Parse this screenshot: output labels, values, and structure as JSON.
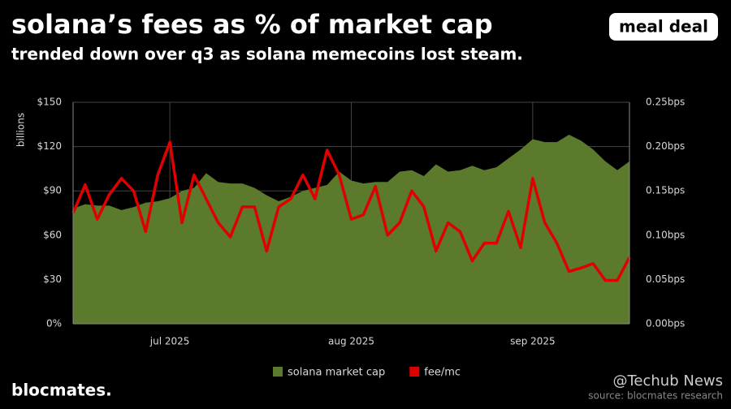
{
  "chart_data": {
    "type": "area-line",
    "title": "solana’s fees as % of market cap",
    "subtitle": "trended down over q3 as solana memecoins lost steam.",
    "brand": "meal deal",
    "footer": "blocmates.",
    "source": "source: blocmates research",
    "watermark": "@Techub News",
    "ylabel": "billions",
    "categories": [
      null,
      null,
      null,
      null,
      null,
      null,
      null,
      null,
      "jul 2025",
      null,
      null,
      null,
      null,
      null,
      null,
      null,
      null,
      null,
      null,
      null,
      null,
      null,
      null,
      "aug 2025",
      null,
      null,
      null,
      null,
      null,
      null,
      null,
      null,
      null,
      null,
      null,
      null,
      null,
      null,
      "sep 2025",
      null,
      null,
      null,
      null,
      null,
      null,
      null,
      null
    ],
    "ylim": [
      0,
      150
    ],
    "yticks": [
      {
        "value": 0,
        "label": "0%"
      },
      {
        "value": 30,
        "label": "$30"
      },
      {
        "value": 60,
        "label": "$60"
      },
      {
        "value": 90,
        "label": "$90"
      },
      {
        "value": 120,
        "label": "$120"
      },
      {
        "value": 150,
        "label": "$150"
      }
    ],
    "y2lim": [
      0,
      0.25
    ],
    "y2ticks": [
      {
        "value": 0,
        "label": "0.00bps"
      },
      {
        "value": 0.05,
        "label": "0.05bps"
      },
      {
        "value": 0.1,
        "label": "0.10bps"
      },
      {
        "value": 0.15,
        "label": "0.15bps"
      },
      {
        "value": 0.2,
        "label": "0.20bps"
      },
      {
        "value": 0.25,
        "label": "0.25bps"
      }
    ],
    "grid": true,
    "legend": "bottom",
    "series": [
      {
        "name": "solana market cap",
        "color": "#5b7a2c",
        "kind": "area",
        "values": [
          78,
          81,
          80,
          80,
          77,
          79,
          82,
          83,
          85,
          90,
          92,
          102,
          96,
          95,
          95,
          92,
          87,
          83,
          86,
          90,
          92,
          94,
          103,
          97,
          95,
          96,
          96,
          103,
          104,
          100,
          108,
          103,
          104,
          107,
          104,
          106,
          112,
          118,
          125,
          123,
          123,
          128,
          124,
          118,
          110,
          104,
          110
        ]
      },
      {
        "name": "fee/mc",
        "color": "#e00000",
        "kind": "line",
        "axis": "y2",
        "values": [
          0.125,
          0.157,
          0.118,
          0.146,
          0.164,
          0.15,
          0.104,
          0.168,
          0.205,
          0.114,
          0.168,
          0.141,
          0.114,
          0.098,
          0.132,
          0.132,
          0.082,
          0.132,
          0.141,
          0.168,
          0.141,
          0.196,
          0.168,
          0.118,
          0.123,
          0.155,
          0.1,
          0.114,
          0.15,
          0.132,
          0.082,
          0.114,
          0.104,
          0.071,
          0.091,
          0.091,
          0.127,
          0.086,
          0.164,
          0.114,
          0.091,
          0.059,
          0.063,
          0.068,
          0.049,
          0.049,
          0.075
        ]
      }
    ]
  }
}
